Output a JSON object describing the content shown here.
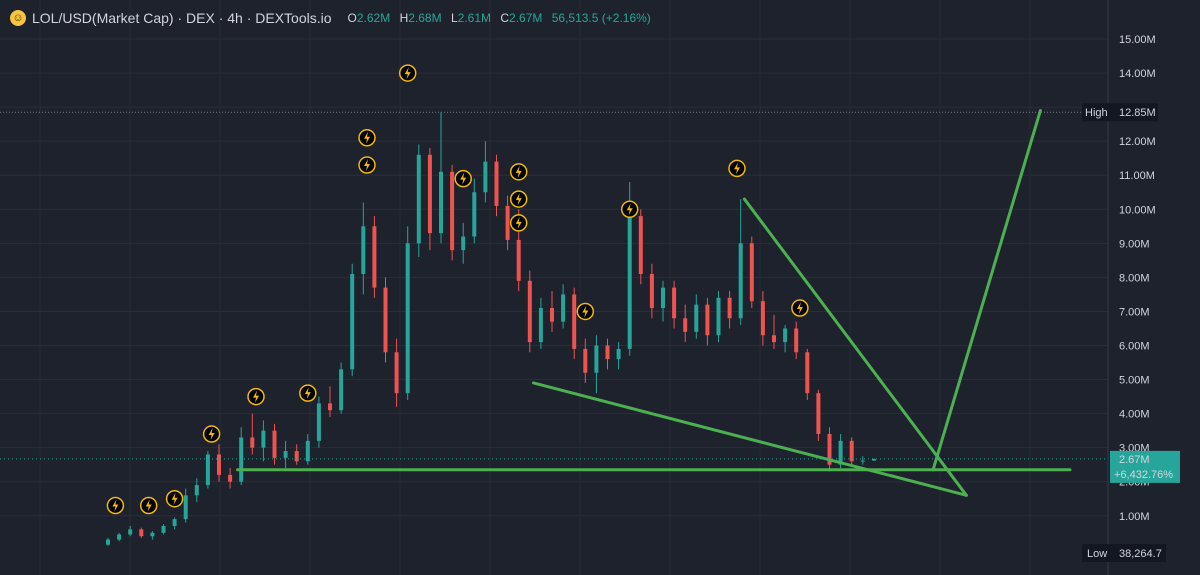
{
  "header": {
    "title": "LOL/USD(Market Cap) · DEX · 4h · DEXTools.io",
    "o_label": "O",
    "o_value": "2.62M",
    "h_label": "H",
    "h_value": "2.68M",
    "l_label": "L",
    "l_value": "2.61M",
    "c_label": "C",
    "c_value": "2.67M",
    "change": "56,513.5 (+2.16%)"
  },
  "colors": {
    "up": "#26a69a",
    "down": "#ef5350",
    "trend": "#4caf50",
    "bg": "#1e222d",
    "badge": "#2962ff"
  },
  "chart_data": {
    "type": "candlestick",
    "y_ticks": [
      "1.00M",
      "2.00M",
      "3.00M",
      "4.00M",
      "5.00M",
      "6.00M",
      "7.00M",
      "8.00M",
      "9.00M",
      "10.00M",
      "11.00M",
      "12.00M",
      "13.00M",
      "14.00M",
      "15.00M"
    ],
    "ylim": [
      0.2,
      15.5
    ],
    "y_unit": "M",
    "high_label": "High",
    "high_value": "12.85M",
    "high": 12.85,
    "low_label": "Low",
    "low_value": "38,264.7",
    "low": 0.038,
    "last_value": "2.67M",
    "last_change": "+6,432.76%",
    "last": 2.67,
    "grid": true,
    "x_range": [
      0,
      250
    ],
    "candles": [
      [
        0,
        0.15,
        0.35,
        0.12,
        0.3
      ],
      [
        3,
        0.3,
        0.5,
        0.25,
        0.45
      ],
      [
        6,
        0.45,
        0.7,
        0.4,
        0.6
      ],
      [
        9,
        0.6,
        0.65,
        0.35,
        0.4
      ],
      [
        12,
        0.4,
        0.55,
        0.3,
        0.5
      ],
      [
        15,
        0.5,
        0.75,
        0.45,
        0.7
      ],
      [
        18,
        0.7,
        0.95,
        0.6,
        0.9
      ],
      [
        21,
        0.9,
        1.8,
        0.8,
        1.6
      ],
      [
        24,
        1.6,
        2.1,
        1.4,
        1.9
      ],
      [
        27,
        1.9,
        2.9,
        1.8,
        2.8
      ],
      [
        30,
        2.8,
        3.1,
        2.0,
        2.2
      ],
      [
        33,
        2.2,
        2.4,
        1.8,
        2.0
      ],
      [
        36,
        2.0,
        3.6,
        1.9,
        3.3
      ],
      [
        39,
        3.3,
        4.0,
        2.8,
        3.0
      ],
      [
        42,
        3.0,
        3.8,
        2.6,
        3.5
      ],
      [
        45,
        3.5,
        3.7,
        2.5,
        2.7
      ],
      [
        48,
        2.7,
        3.2,
        2.4,
        2.9
      ],
      [
        51,
        2.9,
        3.1,
        2.5,
        2.6
      ],
      [
        54,
        2.6,
        3.4,
        2.5,
        3.2
      ],
      [
        57,
        3.2,
        4.5,
        3.0,
        4.3
      ],
      [
        60,
        4.3,
        4.8,
        3.9,
        4.1
      ],
      [
        63,
        4.1,
        5.5,
        4.0,
        5.3
      ],
      [
        66,
        5.3,
        8.4,
        5.1,
        8.1
      ],
      [
        69,
        8.1,
        10.2,
        7.5,
        9.5
      ],
      [
        72,
        9.5,
        9.8,
        7.4,
        7.7
      ],
      [
        75,
        7.7,
        8.0,
        5.5,
        5.8
      ],
      [
        78,
        5.8,
        6.2,
        4.2,
        4.6
      ],
      [
        81,
        4.6,
        9.5,
        4.4,
        9.0
      ],
      [
        84,
        9.0,
        11.9,
        8.6,
        11.6
      ],
      [
        87,
        11.6,
        11.8,
        8.8,
        9.3
      ],
      [
        90,
        9.3,
        12.85,
        9.0,
        11.1
      ],
      [
        93,
        11.1,
        11.3,
        8.5,
        8.8
      ],
      [
        96,
        8.8,
        9.6,
        8.4,
        9.2
      ],
      [
        99,
        9.2,
        10.9,
        9.0,
        10.5
      ],
      [
        102,
        10.5,
        12.0,
        10.2,
        11.4
      ],
      [
        105,
        11.4,
        11.6,
        9.8,
        10.1
      ],
      [
        108,
        10.1,
        10.4,
        8.8,
        9.1
      ],
      [
        111,
        9.1,
        10.0,
        7.6,
        7.9
      ],
      [
        114,
        7.9,
        8.2,
        5.8,
        6.1
      ],
      [
        117,
        6.1,
        7.4,
        5.9,
        7.1
      ],
      [
        120,
        7.1,
        7.6,
        6.4,
        6.7
      ],
      [
        123,
        6.7,
        7.8,
        6.5,
        7.5
      ],
      [
        126,
        7.5,
        7.7,
        5.6,
        5.9
      ],
      [
        129,
        5.9,
        6.2,
        4.9,
        5.2
      ],
      [
        132,
        5.2,
        6.3,
        4.6,
        6.0
      ],
      [
        135,
        6.0,
        6.2,
        5.3,
        5.6
      ],
      [
        138,
        5.6,
        6.1,
        5.3,
        5.9
      ],
      [
        141,
        5.9,
        10.8,
        5.7,
        9.8
      ],
      [
        144,
        9.8,
        10.0,
        7.8,
        8.1
      ],
      [
        147,
        8.1,
        8.4,
        6.8,
        7.1
      ],
      [
        150,
        7.1,
        7.9,
        6.7,
        7.7
      ],
      [
        153,
        7.7,
        7.9,
        6.5,
        6.8
      ],
      [
        156,
        6.8,
        7.2,
        6.1,
        6.4
      ],
      [
        159,
        6.4,
        7.5,
        6.2,
        7.2
      ],
      [
        162,
        7.2,
        7.4,
        6.0,
        6.3
      ],
      [
        165,
        6.3,
        7.6,
        6.1,
        7.4
      ],
      [
        168,
        7.4,
        7.6,
        6.5,
        6.8
      ],
      [
        171,
        6.8,
        10.3,
        6.6,
        9.0
      ],
      [
        174,
        9.0,
        9.2,
        7.1,
        7.3
      ],
      [
        177,
        7.3,
        7.6,
        6.0,
        6.3
      ],
      [
        180,
        6.3,
        6.9,
        5.9,
        6.1
      ],
      [
        183,
        6.1,
        6.6,
        5.8,
        6.5
      ],
      [
        186,
        6.5,
        6.7,
        5.6,
        5.8
      ],
      [
        189,
        5.8,
        5.9,
        4.4,
        4.6
      ],
      [
        192,
        4.6,
        4.7,
        3.2,
        3.4
      ],
      [
        195,
        3.4,
        3.6,
        2.3,
        2.5
      ],
      [
        198,
        2.5,
        3.4,
        2.4,
        3.2
      ],
      [
        201,
        3.2,
        3.3,
        2.5,
        2.6
      ],
      [
        204,
        2.6,
        2.75,
        2.5,
        2.62
      ],
      [
        207,
        2.62,
        2.68,
        2.61,
        2.67
      ]
    ],
    "markers": [
      [
        2,
        1.3
      ],
      [
        11,
        1.3
      ],
      [
        18,
        1.5
      ],
      [
        28,
        3.4
      ],
      [
        40,
        4.5
      ],
      [
        54,
        4.6
      ],
      [
        70,
        12.1
      ],
      [
        70,
        11.3
      ],
      [
        81,
        14.0
      ],
      [
        96,
        10.9
      ],
      [
        111,
        11.1
      ],
      [
        111,
        10.3
      ],
      [
        111,
        9.6
      ],
      [
        129,
        7.0
      ],
      [
        141,
        10.0
      ],
      [
        170,
        11.2
      ],
      [
        187,
        7.1
      ]
    ],
    "trendlines": [
      [
        [
          35,
          2.35
        ],
        [
          260,
          2.35
        ]
      ],
      [
        [
          115,
          4.9
        ],
        [
          232,
          1.6
        ]
      ],
      [
        [
          172,
          10.3
        ],
        [
          232,
          1.6
        ]
      ],
      [
        [
          223,
          2.35
        ],
        [
          252,
          12.9
        ]
      ]
    ]
  }
}
